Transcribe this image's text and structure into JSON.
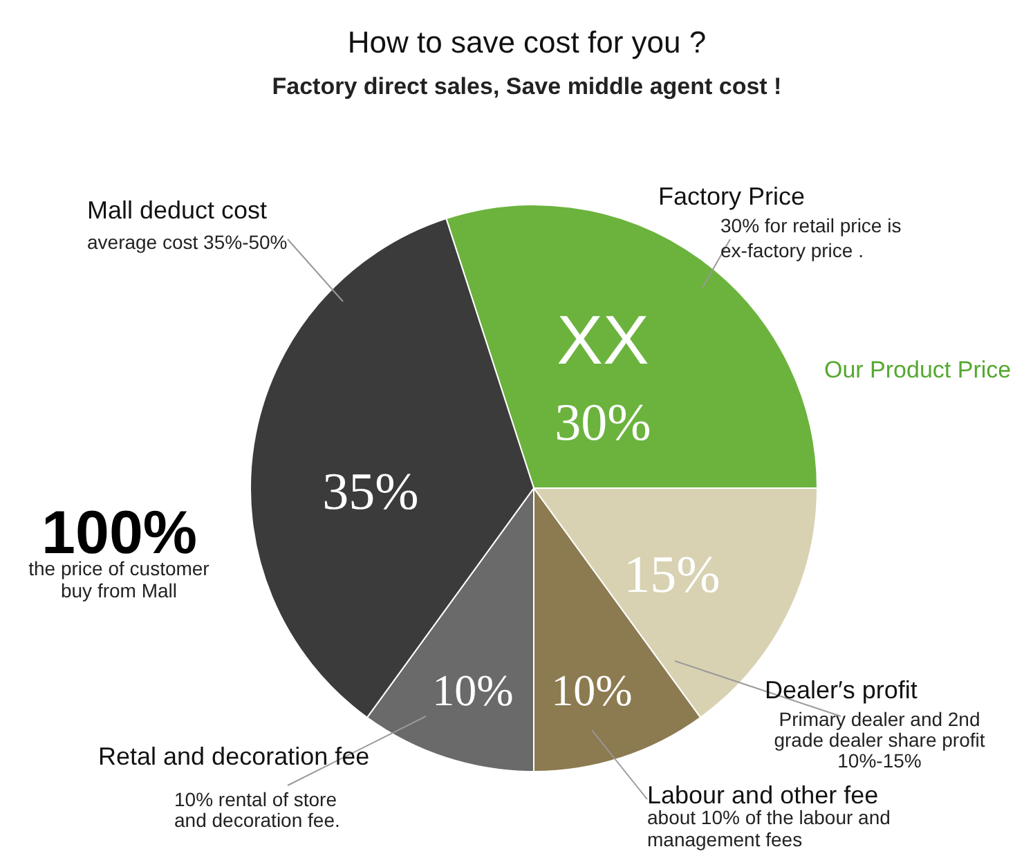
{
  "chart_data": {
    "type": "pie",
    "title": "How to save cost for you ?",
    "subtitle": "Factory direct sales, Save middle agent cost !",
    "categories": [
      "Factory Price",
      "Dealer′s profit",
      "Labour and other fee",
      "Retal and decoration fee",
      "Mall deduct cost"
    ],
    "values": [
      30,
      15,
      10,
      10,
      35
    ],
    "colors": [
      "#6cb33e",
      "#d8d2b2",
      "#8c7b50",
      "#6a6a6a",
      "#3b3b3b"
    ],
    "value_labels": [
      "30%",
      "15%",
      "10%",
      "10%",
      "35%"
    ],
    "annotations": [
      "XX",
      "30% for retail price is\nex-factory price .",
      "Our Product Price",
      "Primary dealer and 2nd\ngrade dealer share profit\n10%-15%",
      "about 10% of the labour and\nmanagement fees",
      "10% rental of store\nand decoration fee.",
      "average cost 35%-50%",
      "100%",
      "the price of customer\nbuy from Mall"
    ],
    "legend": false
  }
}
